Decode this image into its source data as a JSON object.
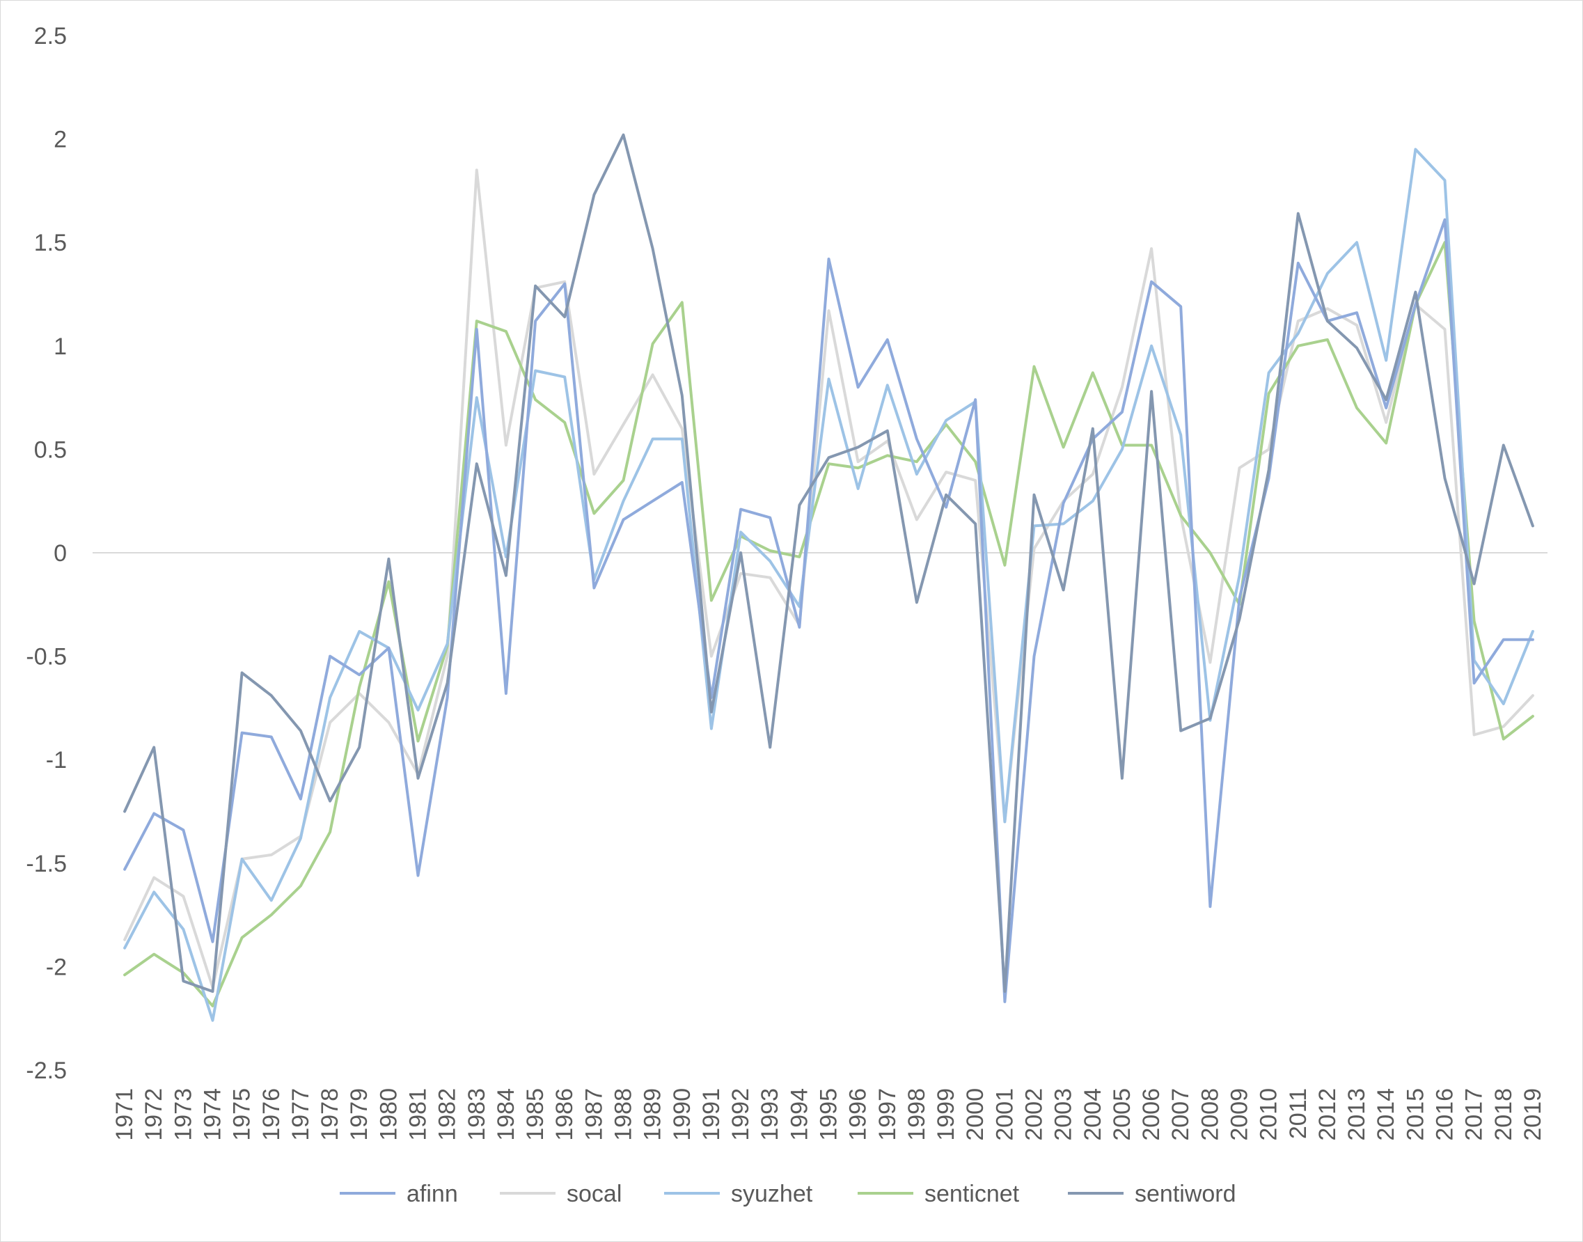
{
  "chart_data": {
    "type": "line",
    "title": "",
    "xlabel": "",
    "ylabel": "",
    "ylim": [
      -2.5,
      2.5
    ],
    "yticks": [
      2.5,
      2,
      1.5,
      1,
      0.5,
      0,
      -0.5,
      -1,
      -1.5,
      -2,
      -2.5
    ],
    "ytick_labels": [
      "2.5",
      "2",
      "1.5",
      "1",
      "0.5",
      "0",
      "-0.5",
      "-1",
      "-1.5",
      "-2",
      "-2.5"
    ],
    "grid": false,
    "zero_line": true,
    "legend_position": "bottom",
    "categories": [
      "1971",
      "1972",
      "1973",
      "1974",
      "1975",
      "1976",
      "1977",
      "1978",
      "1979",
      "1980",
      "1981",
      "1982",
      "1983",
      "1984",
      "1985",
      "1986",
      "1987",
      "1988",
      "1989",
      "1990",
      "1991",
      "1992",
      "1993",
      "1994",
      "1995",
      "1996",
      "1997",
      "1998",
      "1999",
      "2000",
      "2001",
      "2002",
      "2003",
      "2004",
      "2005",
      "2006",
      "2007",
      "2008",
      "2009",
      "2010",
      "2011",
      "2012",
      "2013",
      "2014",
      "2015",
      "2016",
      "2017",
      "2018",
      "2019"
    ],
    "series": [
      {
        "name": "socal",
        "color": "#d9d9d9",
        "values": [
          -1.87,
          -1.57,
          -1.66,
          -2.1,
          -1.48,
          -1.46,
          -1.37,
          -0.82,
          -0.68,
          -0.82,
          -1.07,
          -0.5,
          1.85,
          0.52,
          1.28,
          1.31,
          0.38,
          0.62,
          0.86,
          0.6,
          -0.5,
          -0.1,
          -0.12,
          -0.35,
          1.17,
          0.44,
          0.54,
          0.16,
          0.39,
          0.35,
          -1.3,
          0.02,
          0.25,
          0.38,
          0.8,
          1.47,
          0.18,
          -0.53,
          0.41,
          0.5,
          1.12,
          1.18,
          1.1,
          0.63,
          1.2,
          1.08,
          -0.88,
          -0.84,
          -0.69
        ]
      },
      {
        "name": "senticnet",
        "color": "#a9d18e",
        "values": [
          -2.04,
          -1.94,
          -2.03,
          -2.19,
          -1.86,
          -1.75,
          -1.61,
          -1.35,
          -0.65,
          -0.14,
          -0.91,
          -0.45,
          1.12,
          1.07,
          0.74,
          0.63,
          0.19,
          0.35,
          1.01,
          1.21,
          -0.23,
          0.08,
          0.01,
          -0.02,
          0.43,
          0.41,
          0.47,
          0.44,
          0.62,
          0.44,
          -0.06,
          0.9,
          0.51,
          0.87,
          0.52,
          0.52,
          0.18,
          0.0,
          -0.25,
          0.77,
          1.0,
          1.03,
          0.7,
          0.53,
          1.2,
          1.5,
          -0.33,
          -0.9,
          -0.79
        ]
      },
      {
        "name": "syuzhet",
        "color": "#9dc3e6",
        "values": [
          -1.91,
          -1.64,
          -1.82,
          -2.26,
          -1.48,
          -1.68,
          -1.38,
          -0.7,
          -0.38,
          -0.46,
          -0.76,
          -0.44,
          0.75,
          -0.02,
          0.88,
          0.85,
          -0.13,
          0.25,
          0.55,
          0.55,
          -0.85,
          0.1,
          -0.04,
          -0.26,
          0.84,
          0.31,
          0.81,
          0.38,
          0.64,
          0.73,
          -1.3,
          0.13,
          0.14,
          0.25,
          0.5,
          1.0,
          0.57,
          -0.81,
          -0.11,
          0.87,
          1.06,
          1.35,
          1.5,
          0.93,
          1.95,
          1.8,
          -0.52,
          -0.73,
          -0.38
        ]
      },
      {
        "name": "afinn",
        "color": "#8faadc",
        "values": [
          -1.53,
          -1.26,
          -1.34,
          -1.88,
          -0.87,
          -0.89,
          -1.19,
          -0.5,
          -0.59,
          -0.46,
          -1.56,
          -0.7,
          1.08,
          -0.68,
          1.12,
          1.3,
          -0.17,
          0.16,
          0.25,
          0.34,
          -0.7,
          0.21,
          0.17,
          -0.36,
          1.42,
          0.8,
          1.03,
          0.55,
          0.22,
          0.74,
          -2.17,
          -0.5,
          0.24,
          0.55,
          0.68,
          1.31,
          1.19,
          -1.71,
          -0.22,
          0.36,
          1.4,
          1.12,
          1.16,
          0.7,
          1.2,
          1.61,
          -0.63,
          -0.42,
          -0.42
        ]
      },
      {
        "name": "sentiword",
        "color": "#8497b0",
        "values": [
          -1.25,
          -0.94,
          -2.07,
          -2.12,
          -0.58,
          -0.69,
          -0.86,
          -1.2,
          -0.94,
          -0.03,
          -1.09,
          -0.63,
          0.43,
          -0.11,
          1.29,
          1.14,
          1.73,
          2.02,
          1.47,
          0.76,
          -0.77,
          0.0,
          -0.94,
          0.23,
          0.46,
          0.51,
          0.59,
          -0.24,
          0.28,
          0.14,
          -2.12,
          0.28,
          -0.18,
          0.6,
          -1.09,
          0.78,
          -0.86,
          -0.8,
          -0.32,
          0.4,
          1.64,
          1.12,
          0.99,
          0.74,
          1.26,
          0.36,
          -0.15,
          0.52,
          0.13
        ]
      }
    ],
    "legend_order": [
      "afinn",
      "socal",
      "syuzhet",
      "senticnet",
      "sentiword"
    ]
  }
}
